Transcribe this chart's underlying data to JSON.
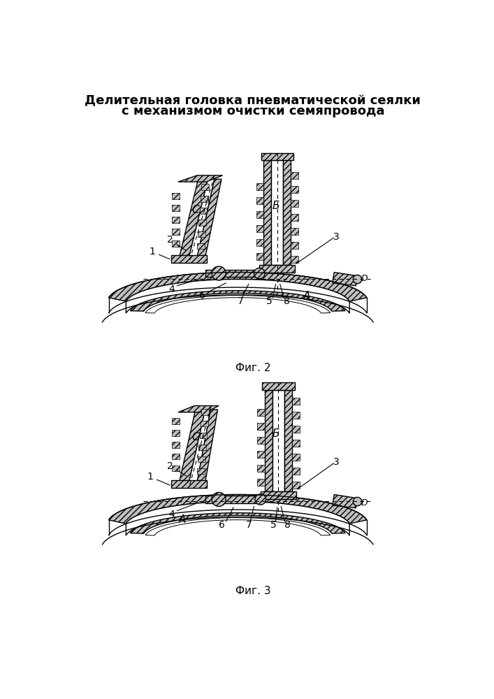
{
  "title_line1": "Делительная головка пневматической сеялки",
  "title_line2": "с механизмом очистки семяпровода",
  "fig2_caption": "Фиг. 2",
  "fig3_caption": "Фиг. 3",
  "bg_color": "#ffffff",
  "line_color": "#000000",
  "hatch_color": "#000000",
  "fill_color": "#d4d4d4",
  "title_fontsize": 13,
  "caption_fontsize": 11
}
